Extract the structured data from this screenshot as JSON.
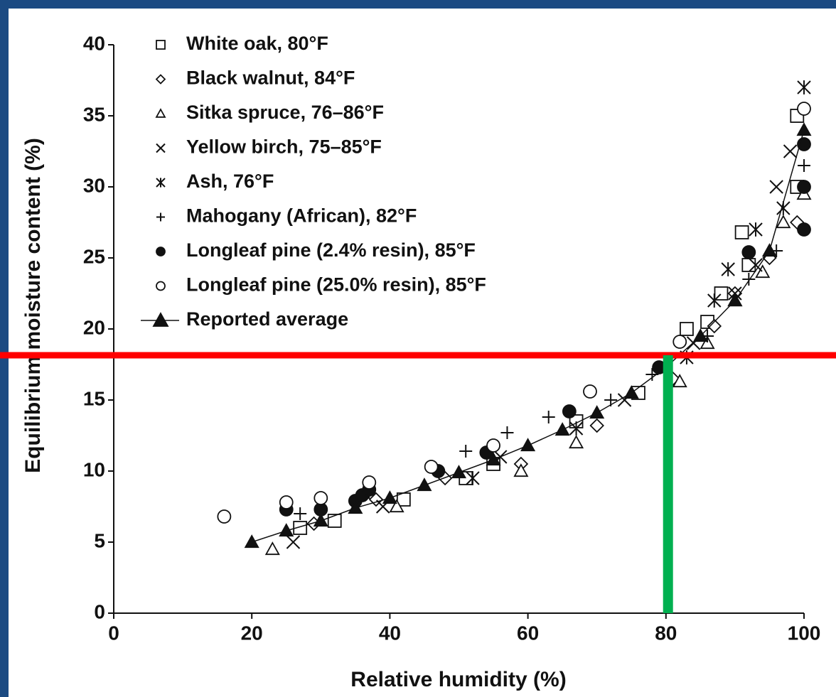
{
  "chart_data": {
    "type": "scatter",
    "x_label": "Relative humidity (%)",
    "y_label": "Equilibrium moisture content (%)",
    "xlim": [
      0,
      100
    ],
    "xticks": [
      0,
      20,
      40,
      60,
      80,
      100
    ],
    "ylim": [
      0,
      40
    ],
    "yticks": [
      0,
      5,
      10,
      15,
      20,
      25,
      30,
      35,
      40
    ],
    "legend": "upper left",
    "series": [
      {
        "name": "White oak, 80°F",
        "color": "#111111",
        "marker": "square",
        "x": [
          27,
          32,
          42,
          51,
          55,
          67,
          76,
          83,
          86,
          88,
          91,
          92,
          99,
          99
        ],
        "values": [
          6,
          6.5,
          8,
          9.5,
          10.5,
          13.5,
          15.5,
          20,
          20.5,
          22.5,
          26.8,
          24.5,
          35,
          30
        ]
      },
      {
        "name": "Black walnut, 84°F",
        "color": "#111111",
        "marker": "diamond",
        "x": [
          29,
          38,
          48,
          59,
          70,
          81,
          87,
          90,
          95,
          99
        ],
        "values": [
          6.3,
          8,
          9.5,
          10.5,
          13.2,
          16.5,
          20.2,
          22.5,
          25,
          27.5
        ]
      },
      {
        "name": "Sitka spruce, 76–86°F",
        "color": "#111111",
        "marker": "triangle",
        "x": [
          23,
          41,
          59,
          67,
          82,
          86,
          90,
          94,
          97,
          100
        ],
        "values": [
          4.5,
          7.5,
          10,
          12,
          16.3,
          19,
          22,
          24,
          27.5,
          29.5
        ]
      },
      {
        "name": "Yellow birch, 75–85°F",
        "color": "#111111",
        "marker": "x",
        "x": [
          26,
          39,
          56,
          74,
          84,
          90,
          93,
          96,
          98
        ],
        "values": [
          5,
          7.5,
          11,
          15,
          19,
          22.5,
          24.5,
          30,
          32.5
        ]
      },
      {
        "name": "Ash, 76°F",
        "color": "#111111",
        "marker": "asterisk",
        "x": [
          35,
          52,
          67,
          83,
          87,
          89,
          93,
          97,
          100
        ],
        "values": [
          7.5,
          9.5,
          13,
          18,
          22,
          24.2,
          27,
          28.5,
          37
        ]
      },
      {
        "name": "Mahogany (African), 82°F",
        "color": "#111111",
        "marker": "plus",
        "x": [
          27,
          37,
          51,
          57,
          63,
          72,
          78,
          86,
          92,
          96,
          100
        ],
        "values": [
          7,
          8.5,
          11.4,
          12.7,
          13.8,
          15,
          16.8,
          19.5,
          23.5,
          25.5,
          31.5
        ]
      },
      {
        "name": "Longleaf pine (2.4% resin), 85°F",
        "color": "#111111",
        "marker": "circle-filled",
        "x": [
          25,
          30,
          35,
          36,
          37,
          47,
          54,
          66,
          79,
          92,
          100,
          100,
          100
        ],
        "values": [
          7.3,
          7.3,
          7.9,
          8.3,
          8.7,
          10,
          11.3,
          14.2,
          17.3,
          25.4,
          33,
          30,
          27
        ]
      },
      {
        "name": "Longleaf pine (25.0% resin), 85°F",
        "color": "#111111",
        "marker": "circle",
        "x": [
          16,
          25,
          30,
          37,
          46,
          55,
          69,
          82,
          100
        ],
        "values": [
          6.8,
          7.8,
          8.1,
          9.2,
          10.3,
          11.8,
          15.6,
          19.1,
          35.5
        ]
      },
      {
        "name": "Reported average",
        "color": "#111111",
        "marker": "triangle-filled",
        "line": true,
        "x": [
          20,
          25,
          30,
          35,
          40,
          45,
          50,
          55,
          60,
          65,
          70,
          75,
          80,
          85,
          90,
          95,
          100
        ],
        "values": [
          5,
          5.8,
          6.5,
          7.4,
          8.1,
          9,
          9.9,
          10.8,
          11.8,
          12.9,
          14.1,
          15.5,
          17.3,
          19.5,
          22,
          25.5,
          34
        ]
      }
    ],
    "reference_lines": [
      {
        "axis": "y",
        "value": 18.15,
        "color": "#ff0000"
      },
      {
        "axis": "x",
        "value": 80.3,
        "color": "#00b050"
      }
    ]
  }
}
